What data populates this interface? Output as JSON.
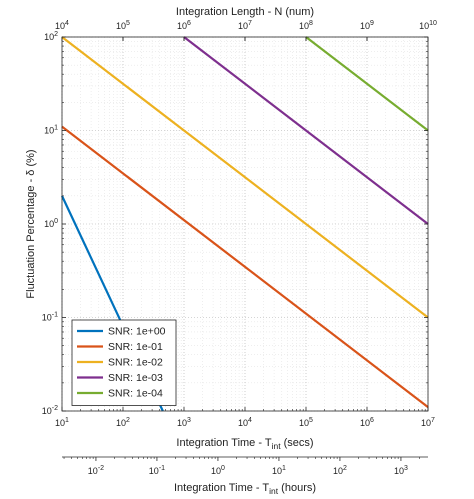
{
  "chart_data": {
    "type": "line",
    "scale": "log-log",
    "grid": true,
    "legend_placement": "bottom-left",
    "x_bottom": {
      "label_main": "Integration Time - T",
      "label_sub": "int",
      "label_unit": " (secs)",
      "range": [
        10,
        10000000
      ],
      "ticks": [
        {
          "value": 10,
          "base": "10",
          "exp": "1"
        },
        {
          "value": 100,
          "base": "10",
          "exp": "2"
        },
        {
          "value": 1000,
          "base": "10",
          "exp": "3"
        },
        {
          "value": 10000,
          "base": "10",
          "exp": "4"
        },
        {
          "value": 100000,
          "base": "10",
          "exp": "5"
        },
        {
          "value": 1000000,
          "base": "10",
          "exp": "6"
        },
        {
          "value": 10000000,
          "base": "10",
          "exp": "7"
        }
      ]
    },
    "x_top": {
      "label": "Integration Length - N (num)",
      "range": [
        10000,
        10000000000
      ],
      "ticks": [
        {
          "value": 10000,
          "base": "10",
          "exp": "4"
        },
        {
          "value": 100000,
          "base": "10",
          "exp": "5"
        },
        {
          "value": 1000000,
          "base": "10",
          "exp": "6"
        },
        {
          "value": 10000000,
          "base": "10",
          "exp": "7"
        },
        {
          "value": 100000000,
          "base": "10",
          "exp": "8"
        },
        {
          "value": 1000000000,
          "base": "10",
          "exp": "9"
        },
        {
          "value": 10000000000,
          "base": "10",
          "exp": "10"
        }
      ]
    },
    "x_hours": {
      "label_main": "Integration Time - T",
      "label_sub": "int",
      "label_unit": " (hours)",
      "range": [
        0.0027778,
        2777.78
      ],
      "ticks": [
        {
          "value": 0.01,
          "base": "10",
          "exp": "-2"
        },
        {
          "value": 0.1,
          "base": "10",
          "exp": "-1"
        },
        {
          "value": 1,
          "base": "10",
          "exp": "0"
        },
        {
          "value": 10,
          "base": "10",
          "exp": "1"
        },
        {
          "value": 100,
          "base": "10",
          "exp": "2"
        },
        {
          "value": 1000,
          "base": "10",
          "exp": "3"
        }
      ]
    },
    "y": {
      "label_main": "Fluctuation Percentage - ",
      "label_symbol": "δ",
      "label_unit": " (%)",
      "range": [
        0.01,
        100
      ],
      "ticks": [
        {
          "value": 0.01,
          "base": "10",
          "exp": "-2"
        },
        {
          "value": 0.1,
          "base": "10",
          "exp": "-1"
        },
        {
          "value": 1,
          "base": "10",
          "exp": "0"
        },
        {
          "value": 10,
          "base": "10",
          "exp": "1"
        },
        {
          "value": 100,
          "base": "10",
          "exp": "2"
        }
      ]
    },
    "series": [
      {
        "name": "SNR: 1e+00",
        "color": "#0072BD",
        "x": [
          10,
          450
        ],
        "y": [
          2.0,
          0.01
        ]
      },
      {
        "name": "SNR: 1e-01",
        "color": "#D95319",
        "x": [
          10,
          10000000
        ],
        "y": [
          11.0,
          0.011
        ]
      },
      {
        "name": "SNR: 1e-02",
        "color": "#EDB120",
        "x": [
          10,
          10000000
        ],
        "y": [
          100,
          0.1
        ]
      },
      {
        "name": "SNR: 1e-03",
        "color": "#7E2F8E",
        "x": [
          1000,
          10000000
        ],
        "y": [
          100,
          1.0
        ]
      },
      {
        "name": "SNR: 1e-04",
        "color": "#77AC30",
        "x": [
          100000,
          10000000
        ],
        "y": [
          100,
          10.0
        ]
      }
    ]
  }
}
